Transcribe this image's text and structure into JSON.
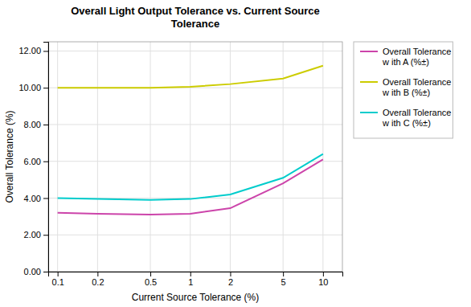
{
  "chart_data": {
    "type": "line",
    "title": "Overall Light Output Tolerance vs. Current Source\nTolerance",
    "xlabel": "Current Source Tolerance (%)",
    "ylabel": "Overall Tolerance (%)",
    "x": [
      0.1,
      0.2,
      0.5,
      1.0,
      2.0,
      5.0,
      10.0
    ],
    "series": [
      {
        "name": "Overall Tolerance\nw ith A (%±)",
        "color": "#cc44aa",
        "values": [
          3.2,
          3.15,
          3.1,
          3.15,
          3.45,
          4.8,
          6.1
        ]
      },
      {
        "name": "Overall Tolerance\nw ith B (%±)",
        "color": "#cccc00",
        "values": [
          10.0,
          10.0,
          10.0,
          10.05,
          10.2,
          10.5,
          11.2
        ]
      },
      {
        "name": "Overall Tolerance\nw ith C (%±)",
        "color": "#00cccc",
        "values": [
          4.0,
          3.95,
          3.9,
          3.95,
          4.2,
          5.1,
          6.4
        ]
      }
    ],
    "xlim": [
      0.085,
      14
    ],
    "xticks": [
      0.1,
      0.2,
      0.5,
      1,
      2,
      5,
      10
    ],
    "ylim": [
      0.0,
      12.5
    ],
    "yticks": [
      {
        "value": 0,
        "label": "0.00"
      },
      {
        "value": 2,
        "label": "2.00"
      },
      {
        "value": 4,
        "label": "4.00"
      },
      {
        "value": 6,
        "label": "6.00"
      },
      {
        "value": 8,
        "label": "8.00"
      },
      {
        "value": 10,
        "label": "10.00"
      },
      {
        "value": 12,
        "label": "12.00"
      }
    ],
    "log": "x",
    "grid": true,
    "legend": "right"
  }
}
